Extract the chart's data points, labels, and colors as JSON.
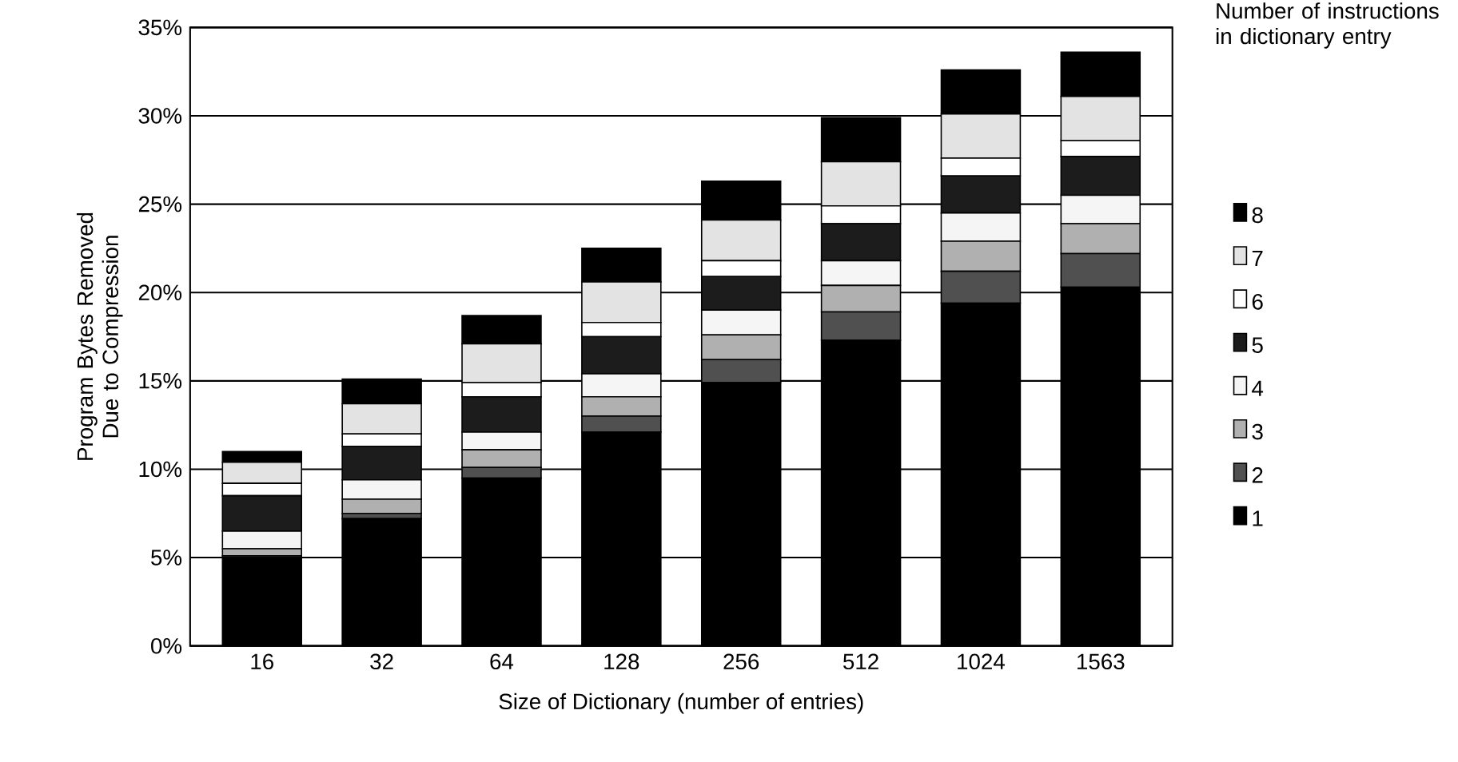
{
  "chart_data": {
    "type": "bar",
    "stacked": true,
    "xlabel": "Size of Dictionary (number of entries)",
    "ylabel": "Program Bytes Removed Due to Compression",
    "legend_title": "Number of instructions in dictionary entry",
    "legend": "right",
    "grid": "y",
    "categories": [
      "16",
      "32",
      "64",
      "128",
      "256",
      "512",
      "1024",
      "1563"
    ],
    "ylim": [
      0,
      35
    ],
    "yticks": [
      {
        "value": 0,
        "label": "0%"
      },
      {
        "value": 5,
        "label": "5%"
      },
      {
        "value": 10,
        "label": "10%"
      },
      {
        "value": 15,
        "label": "15%"
      },
      {
        "value": 20,
        "label": "20%"
      },
      {
        "value": 25,
        "label": "25%"
      },
      {
        "value": 30,
        "label": "30%"
      },
      {
        "value": 35,
        "label": "35%"
      }
    ],
    "series": [
      {
        "name": "1",
        "color": "#000000",
        "values": [
          5.0,
          7.2,
          9.5,
          12.1,
          14.9,
          17.3,
          19.4,
          20.3
        ]
      },
      {
        "name": "2",
        "color": "#505050",
        "values": [
          0.1,
          0.3,
          0.6,
          0.9,
          1.3,
          1.6,
          1.8,
          1.9
        ]
      },
      {
        "name": "3",
        "color": "#b0b0b0",
        "values": [
          0.4,
          0.8,
          1.0,
          1.1,
          1.4,
          1.5,
          1.7,
          1.7
        ]
      },
      {
        "name": "4",
        "color": "#f5f5f5",
        "values": [
          1.0,
          1.1,
          1.0,
          1.3,
          1.4,
          1.4,
          1.6,
          1.6
        ]
      },
      {
        "name": "5",
        "color": "#1c1c1c",
        "values": [
          2.0,
          1.9,
          2.0,
          2.1,
          1.9,
          2.1,
          2.1,
          2.2
        ]
      },
      {
        "name": "6",
        "color": "#ffffff",
        "values": [
          0.7,
          0.7,
          0.8,
          0.8,
          0.9,
          1.0,
          1.0,
          0.9
        ]
      },
      {
        "name": "7",
        "color": "#e3e3e3",
        "values": [
          1.2,
          1.7,
          2.2,
          2.3,
          2.3,
          2.5,
          2.5,
          2.5
        ]
      },
      {
        "name": "8",
        "color": "#000000",
        "values": [
          0.6,
          1.4,
          1.6,
          1.9,
          2.2,
          2.5,
          2.5,
          2.5
        ]
      }
    ]
  }
}
